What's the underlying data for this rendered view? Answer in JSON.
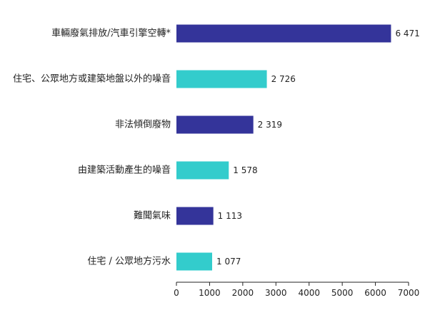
{
  "chart_data": {
    "type": "bar",
    "orientation": "horizontal",
    "categories": [
      "車輛廢氣排放/汽車引擎空轉*",
      "住宅、公眾地方或建築地盤以外的噪音",
      "非法傾倒廢物",
      "由建築活動產生的噪音",
      "難聞氣味",
      "住宅 / 公眾地方污水"
    ],
    "values": [
      6471,
      2726,
      2319,
      1578,
      1113,
      1077
    ],
    "value_labels": [
      "6 471",
      "2 726",
      "2 319",
      "1 578",
      "1 113",
      "1 077"
    ],
    "bar_colors": [
      "#34349a",
      "#33cccc",
      "#34349a",
      "#33cccc",
      "#34349a",
      "#33cccc"
    ],
    "xlim": [
      0,
      7000
    ],
    "xticks": [
      0,
      1000,
      2000,
      3000,
      4000,
      5000,
      6000,
      7000
    ],
    "title": "",
    "xlabel": "",
    "ylabel": "",
    "grid": false,
    "legend": "none"
  }
}
